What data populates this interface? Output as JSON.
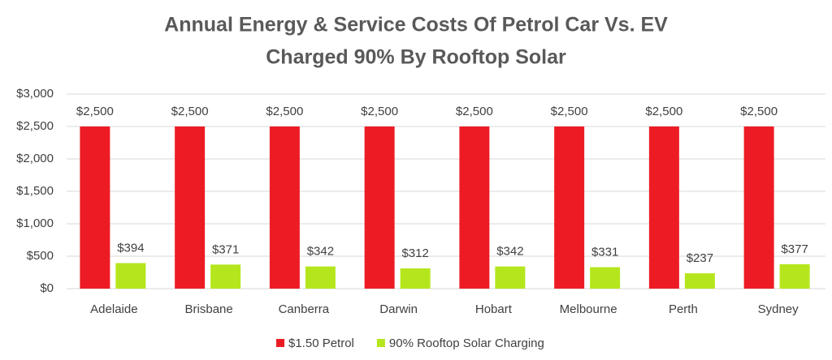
{
  "chart_data": {
    "type": "bar",
    "title": [
      "Annual Energy & Service Costs Of Petrol Car Vs. EV",
      "Charged 90% By Rooftop Solar"
    ],
    "categories": [
      "Adelaide",
      "Brisbane",
      "Canberra",
      "Darwin",
      "Hobart",
      "Melbourne",
      "Perth",
      "Sydney"
    ],
    "series": [
      {
        "name": "$1.50 Petrol",
        "color": "#ed1c24",
        "values": [
          2500,
          2500,
          2500,
          2500,
          2500,
          2500,
          2500,
          2500
        ],
        "value_labels": [
          "$2,500",
          "$2,500",
          "$2,500",
          "$2,500",
          "$2,500",
          "$2,500",
          "$2,500",
          "$2,500"
        ]
      },
      {
        "name": "90% Rooftop Solar Charging",
        "color": "#b5e61d",
        "values": [
          394,
          371,
          342,
          312,
          342,
          331,
          237,
          377
        ],
        "value_labels": [
          "$394",
          "$371",
          "$342",
          "$312",
          "$342",
          "$331",
          "$237",
          "$377"
        ]
      }
    ],
    "ylim": [
      0,
      3000
    ],
    "yticks": [
      {
        "value": 0,
        "label": "$0"
      },
      {
        "value": 500,
        "label": "$500"
      },
      {
        "value": 1000,
        "label": "$1,000"
      },
      {
        "value": 1500,
        "label": "$1,500"
      },
      {
        "value": 2000,
        "label": "$2,000"
      },
      {
        "value": 2500,
        "label": "$2,500"
      },
      {
        "value": 3000,
        "label": "$3,000"
      }
    ],
    "grid": true,
    "legend": "bottom"
  }
}
